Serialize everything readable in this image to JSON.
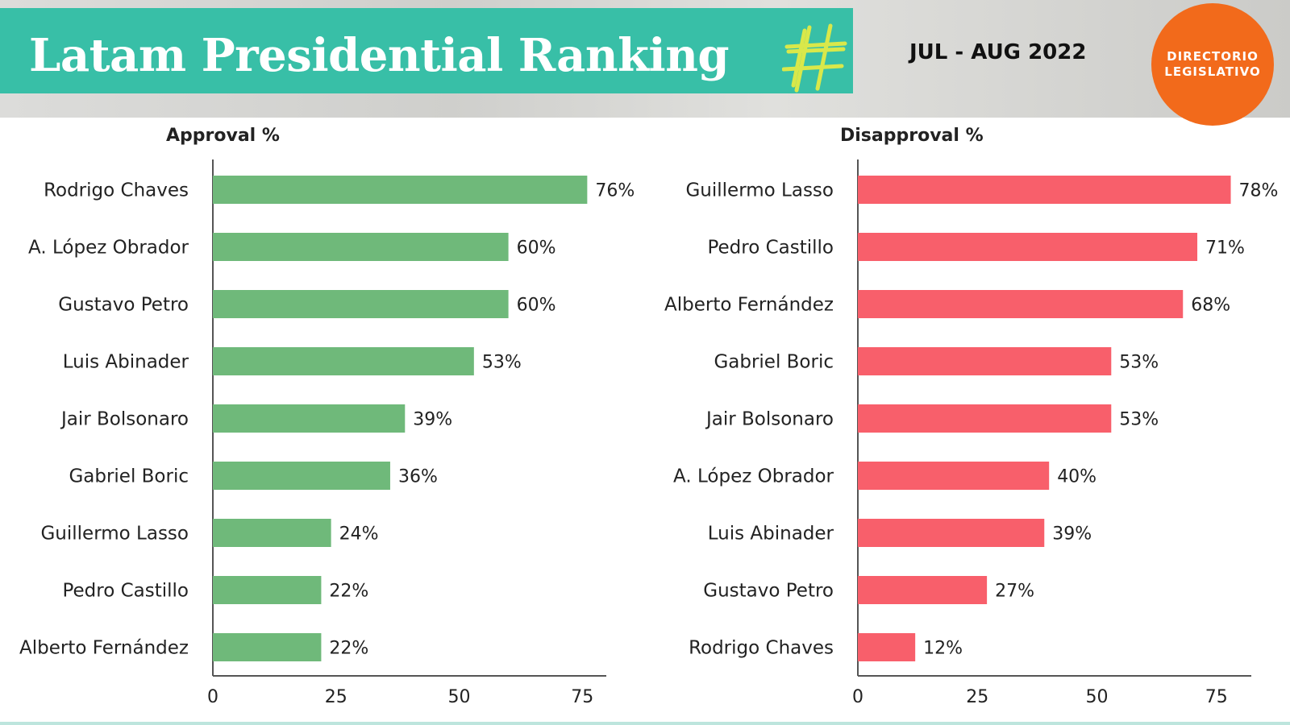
{
  "header": {
    "title": "Latam Presidential Ranking",
    "date_range": "JUL - AUG 2022",
    "brand_line1": "DIRECTORIO",
    "brand_line2": "LEGISLATIVO",
    "banner_color": "#38bfa7",
    "brand_color": "#f26a1b",
    "hashtag_color": "#d9e84a"
  },
  "chart_data": [
    {
      "type": "bar",
      "orientation": "horizontal",
      "title": "Approval %",
      "color": "#6fb97a",
      "categories": [
        "Rodrigo Chaves",
        "A. López Obrador",
        "Gustavo Petro",
        "Luis Abinader",
        "Jair Bolsonaro",
        "Gabriel Boric",
        "Guillermo Lasso",
        "Pedro Castillo",
        "Alberto Fernández"
      ],
      "values": [
        76,
        60,
        60,
        53,
        39,
        36,
        24,
        22,
        22
      ],
      "value_labels": [
        "76%",
        "60%",
        "60%",
        "53%",
        "39%",
        "36%",
        "24%",
        "22%",
        "22%"
      ],
      "xticks": [
        0,
        25,
        50,
        75
      ],
      "xlim": [
        0,
        80
      ]
    },
    {
      "type": "bar",
      "orientation": "horizontal",
      "title": "Disapproval %",
      "color": "#f85f6b",
      "categories": [
        "Guillermo Lasso",
        "Pedro Castillo",
        "Alberto Fernández",
        "Gabriel Boric",
        "Jair Bolsonaro",
        "A. López Obrador",
        "Luis Abinader",
        "Gustavo Petro",
        "Rodrigo Chaves"
      ],
      "values": [
        78,
        71,
        68,
        53,
        53,
        40,
        39,
        27,
        12
      ],
      "value_labels": [
        "78%",
        "71%",
        "68%",
        "53%",
        "53%",
        "40%",
        "39%",
        "27%",
        "12%"
      ],
      "xticks": [
        0,
        25,
        50,
        75
      ],
      "xlim": [
        0,
        81
      ]
    }
  ]
}
